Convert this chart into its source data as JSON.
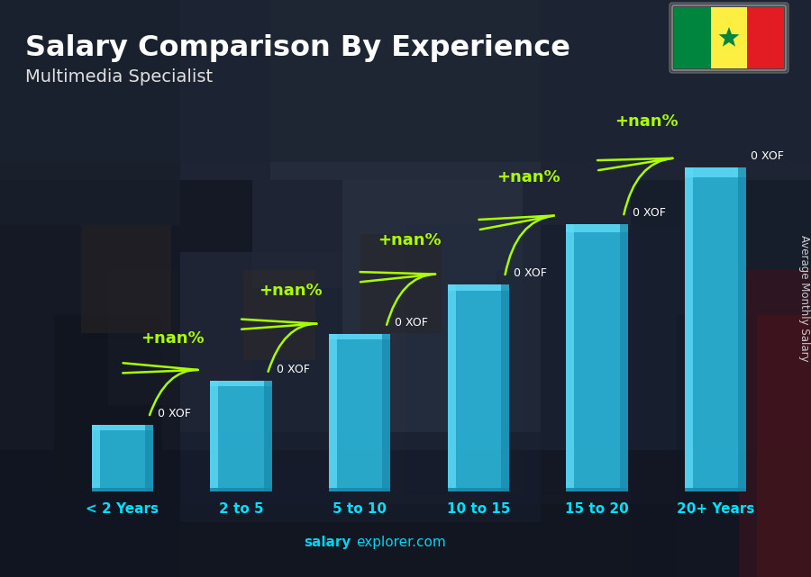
{
  "title": "Salary Comparison By Experience",
  "subtitle": "Multimedia Specialist",
  "ylabel": "Average Monthly Salary",
  "watermark_bold": "salary",
  "watermark_normal": "explorer.com",
  "categories": [
    "< 2 Years",
    "2 to 5",
    "5 to 10",
    "10 to 15",
    "15 to 20",
    "20+ Years"
  ],
  "bar_labels": [
    "0 XOF",
    "0 XOF",
    "0 XOF",
    "0 XOF",
    "0 XOF",
    "0 XOF"
  ],
  "pct_labels": [
    "+nan%",
    "+nan%",
    "+nan%",
    "+nan%",
    "+nan%"
  ],
  "heights": [
    1.0,
    1.65,
    2.35,
    3.1,
    4.0,
    4.85
  ],
  "bar_color_light": "#5dd8f5",
  "bar_color_mid": "#2ab4d8",
  "bar_color_dark": "#1888aa",
  "pct_color": "#aaff00",
  "label_color": "#ffffff",
  "title_color": "#ffffff",
  "subtitle_color": "#e0e0e0",
  "watermark_color": "#00d4f0",
  "ylabel_color": "#cccccc",
  "tick_color": "#00e0ff",
  "bg_photo_color1": "#2a3545",
  "bg_photo_color2": "#3d4a5c",
  "bg_photo_color3": "#1e2530",
  "overlay_color": "#0a1020",
  "overlay_alpha": 0.35,
  "figsize": [
    9.0,
    6.41
  ],
  "dpi": 100,
  "flag_green": "#00853F",
  "flag_yellow": "#FDEF42",
  "flag_red": "#E31B23",
  "flag_star": "#00853F"
}
